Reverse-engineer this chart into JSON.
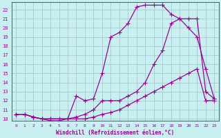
{
  "xlabel": "Windchill (Refroidissement éolien,°C)",
  "bg_color": "#c8f0f0",
  "grid_color": "#a0c0c8",
  "line_color": "#990099",
  "xlim": [
    -0.5,
    23.5
  ],
  "ylim": [
    9.8,
    22.8
  ],
  "xticks": [
    0,
    1,
    2,
    3,
    4,
    5,
    6,
    7,
    8,
    9,
    10,
    11,
    12,
    13,
    14,
    15,
    16,
    17,
    18,
    19,
    20,
    21,
    22,
    23
  ],
  "yticks": [
    10,
    11,
    12,
    13,
    14,
    15,
    16,
    17,
    18,
    19,
    20,
    21,
    22
  ],
  "line1_x": [
    0,
    1,
    2,
    3,
    4,
    5,
    6,
    7,
    8,
    9,
    10,
    11,
    12,
    13,
    14,
    15,
    16,
    17,
    18,
    19,
    20,
    21,
    22,
    23
  ],
  "line1_y": [
    10.5,
    10.5,
    10.2,
    10.0,
    10.0,
    10.0,
    10.0,
    10.0,
    10.0,
    10.2,
    10.5,
    10.7,
    11.0,
    11.5,
    12.0,
    12.5,
    13.0,
    13.5,
    14.0,
    14.5,
    15.0,
    15.5,
    12.0,
    12.0
  ],
  "line2_x": [
    0,
    1,
    2,
    3,
    4,
    5,
    6,
    7,
    8,
    9,
    10,
    11,
    12,
    13,
    14,
    15,
    16,
    17,
    18,
    19,
    20,
    21,
    22,
    23
  ],
  "line2_y": [
    10.5,
    10.5,
    10.2,
    10.0,
    10.0,
    10.0,
    10.0,
    10.2,
    10.5,
    11.0,
    12.0,
    12.0,
    12.0,
    12.5,
    13.0,
    14.0,
    16.0,
    17.5,
    20.5,
    21.0,
    21.0,
    21.0,
    13.0,
    12.2
  ],
  "line3_x": [
    0,
    1,
    2,
    3,
    4,
    5,
    6,
    7,
    8,
    9,
    10,
    11,
    12,
    13,
    14,
    15,
    16,
    17,
    18,
    19,
    20,
    21,
    22,
    23
  ],
  "line3_y": [
    10.5,
    10.5,
    10.2,
    10.0,
    9.8,
    9.8,
    10.0,
    12.5,
    12.0,
    12.2,
    15.0,
    19.0,
    19.5,
    20.5,
    22.3,
    22.5,
    22.5,
    22.5,
    21.5,
    21.0,
    20.0,
    19.0,
    15.5,
    12.2
  ],
  "marker": "+",
  "markersize": 4,
  "lw": 0.9
}
